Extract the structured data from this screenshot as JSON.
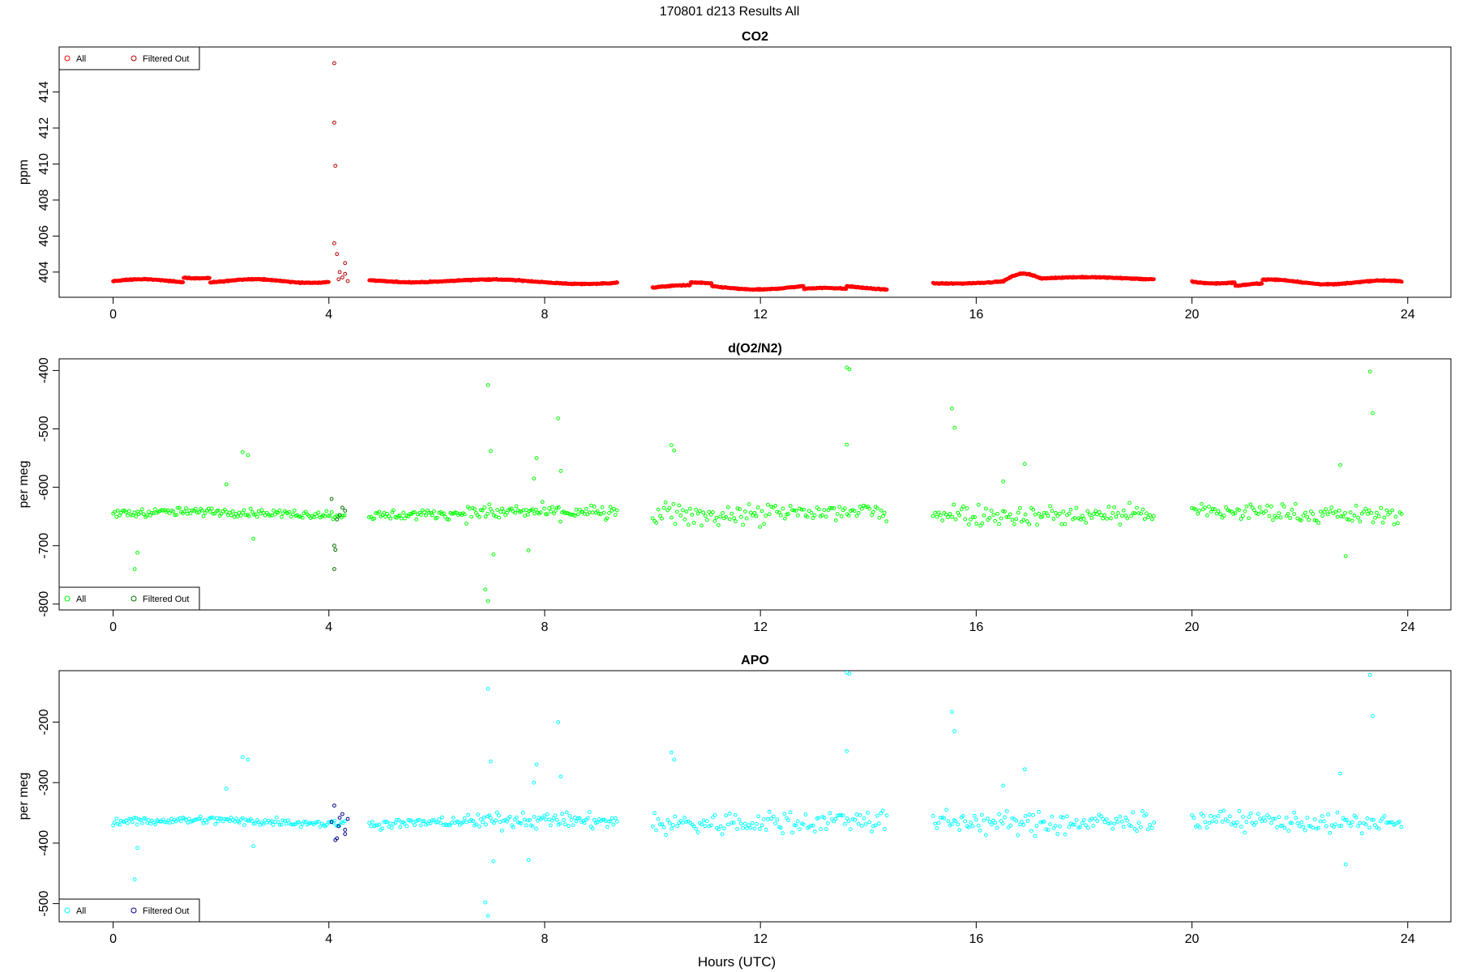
{
  "figure": {
    "title": "170801   d213   Results All",
    "xlabel": "Hours (UTC)"
  },
  "chart_data": [
    {
      "type": "scatter",
      "title": "CO2",
      "ylabel": "ppm",
      "xlim": [
        -1.0,
        24.8
      ],
      "ylim": [
        402.6,
        416.5
      ],
      "xticks": [
        "0",
        "4",
        "8",
        "12",
        "16",
        "20",
        "24"
      ],
      "yticks": [
        "404",
        "406",
        "408",
        "410",
        "412",
        "414"
      ],
      "legend": {
        "position": "top-left",
        "entries": [
          "All",
          "Filtered Out"
        ]
      },
      "series": [
        {
          "name": "All",
          "color": "#ff0000",
          "generator": "co2",
          "x_segments": [
            [
              0,
              4.0
            ],
            [
              4.75,
              9.35
            ],
            [
              10.0,
              14.35
            ],
            [
              15.2,
              19.3
            ],
            [
              20.0,
              23.9
            ]
          ]
        },
        {
          "name": "Filtered Out",
          "color": "#b30000",
          "points": [
            [
              4.1,
              415.6
            ],
            [
              4.1,
              412.3
            ],
            [
              4.12,
              409.9
            ],
            [
              4.1,
              405.6
            ],
            [
              4.15,
              405.0
            ],
            [
              4.2,
              404.0
            ],
            [
              4.25,
              403.7
            ],
            [
              4.3,
              404.5
            ],
            [
              4.3,
              403.9
            ],
            [
              4.35,
              403.5
            ],
            [
              4.18,
              403.6
            ]
          ]
        }
      ]
    },
    {
      "type": "scatter",
      "title": "d(O2/N2)",
      "ylabel": "per meg",
      "xlim": [
        -1.0,
        24.8
      ],
      "ylim": [
        -810,
        -380
      ],
      "xticks": [
        "0",
        "4",
        "8",
        "12",
        "16",
        "20",
        "24"
      ],
      "yticks": [
        "-800",
        "-700",
        "-600",
        "-500",
        "-400"
      ],
      "legend": {
        "position": "bottom-left",
        "entries": [
          "All",
          "Filtered Out"
        ]
      },
      "series": [
        {
          "name": "All",
          "color": "#00ff00",
          "generator": "o2",
          "outliers": [
            [
              0.4,
              -740
            ],
            [
              0.45,
              -712
            ],
            [
              2.4,
              -540
            ],
            [
              2.5,
              -545
            ],
            [
              2.1,
              -595
            ],
            [
              2.6,
              -688
            ],
            [
              6.95,
              -425
            ],
            [
              7.0,
              -538
            ],
            [
              6.9,
              -775
            ],
            [
              6.95,
              -795
            ],
            [
              7.05,
              -715
            ],
            [
              7.7,
              -708
            ],
            [
              7.8,
              -585
            ],
            [
              7.85,
              -550
            ],
            [
              8.25,
              -482
            ],
            [
              8.3,
              -572
            ],
            [
              10.35,
              -528
            ],
            [
              10.4,
              -537
            ],
            [
              13.6,
              -395
            ],
            [
              13.65,
              -398
            ],
            [
              13.6,
              -527
            ],
            [
              15.55,
              -465
            ],
            [
              15.6,
              -498
            ],
            [
              16.5,
              -590
            ],
            [
              16.9,
              -560
            ],
            [
              23.3,
              -402
            ],
            [
              23.35,
              -473
            ],
            [
              22.75,
              -562
            ],
            [
              22.85,
              -718
            ]
          ]
        },
        {
          "name": "Filtered Out",
          "color": "#007000",
          "points": [
            [
              4.1,
              -700
            ],
            [
              4.12,
              -707
            ],
            [
              4.1,
              -740
            ],
            [
              4.05,
              -620
            ],
            [
              4.25,
              -635
            ],
            [
              4.3,
              -640
            ],
            [
              4.2,
              -648
            ],
            [
              4.15,
              -655
            ]
          ]
        }
      ]
    },
    {
      "type": "scatter",
      "title": "APO",
      "ylabel": "per meg",
      "xlim": [
        -1.0,
        24.8
      ],
      "ylim": [
        -530,
        -115
      ],
      "xticks": [
        "0",
        "4",
        "8",
        "12",
        "16",
        "20",
        "24"
      ],
      "yticks": [
        "-500",
        "-400",
        "-300",
        "-200"
      ],
      "legend": {
        "position": "bottom-left",
        "entries": [
          "All",
          "Filtered Out"
        ]
      },
      "series": [
        {
          "name": "All",
          "color": "#00ffff",
          "generator": "apo",
          "outliers": [
            [
              0.4,
              -460
            ],
            [
              0.45,
              -408
            ],
            [
              2.4,
              -258
            ],
            [
              2.5,
              -262
            ],
            [
              2.1,
              -310
            ],
            [
              2.6,
              -405
            ],
            [
              6.95,
              -145
            ],
            [
              7.0,
              -265
            ],
            [
              6.9,
              -498
            ],
            [
              6.95,
              -520
            ],
            [
              7.05,
              -430
            ],
            [
              7.7,
              -428
            ],
            [
              7.8,
              -300
            ],
            [
              7.85,
              -270
            ],
            [
              8.25,
              -200
            ],
            [
              8.3,
              -290
            ],
            [
              10.35,
              -250
            ],
            [
              10.4,
              -262
            ],
            [
              13.6,
              -118
            ],
            [
              13.65,
              -120
            ],
            [
              13.6,
              -248
            ],
            [
              15.55,
              -183
            ],
            [
              15.6,
              -215
            ],
            [
              16.5,
              -305
            ],
            [
              16.9,
              -278
            ],
            [
              23.3,
              -122
            ],
            [
              23.35,
              -190
            ],
            [
              22.75,
              -285
            ],
            [
              22.85,
              -435
            ]
          ]
        },
        {
          "name": "Filtered Out",
          "color": "#00008b",
          "points": [
            [
              4.1,
              -338
            ],
            [
              4.12,
              -395
            ],
            [
              4.15,
              -392
            ],
            [
              4.18,
              -372
            ],
            [
              4.2,
              -358
            ],
            [
              4.25,
              -352
            ],
            [
              4.3,
              -378
            ],
            [
              4.3,
              -385
            ],
            [
              4.35,
              -360
            ],
            [
              4.05,
              -365
            ]
          ]
        }
      ]
    }
  ]
}
